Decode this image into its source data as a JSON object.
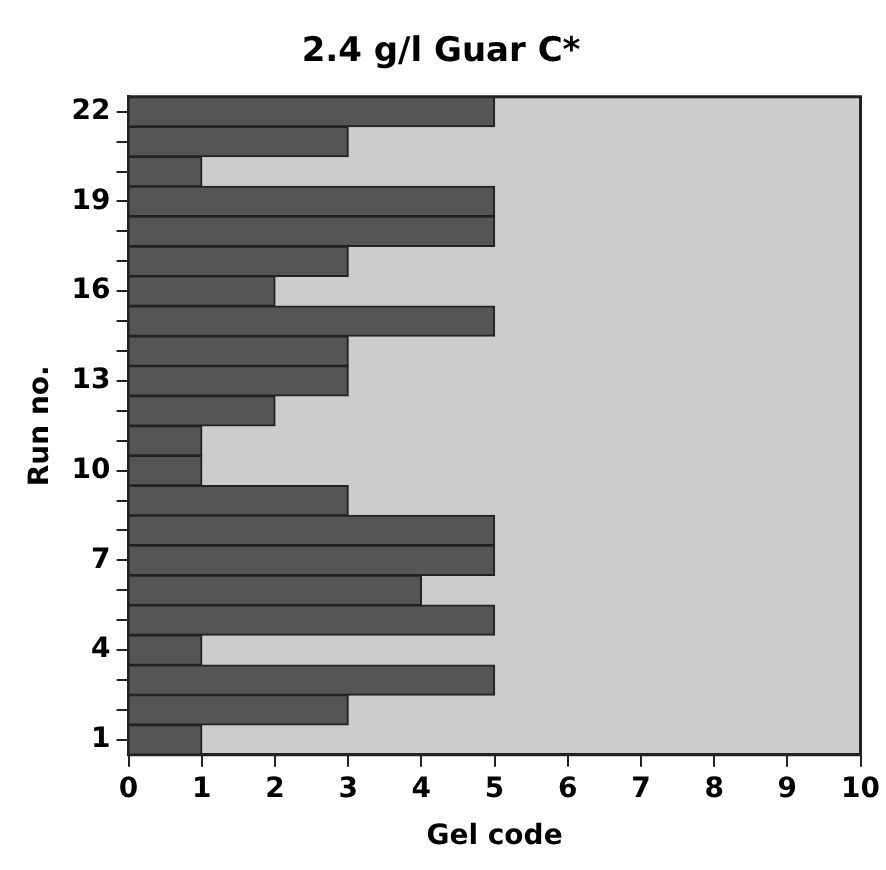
{
  "chart_data": {
    "type": "bar",
    "orientation": "horizontal",
    "title": "2.4 g/l Guar C*",
    "xlabel": "Gel code",
    "ylabel": "Run no.",
    "categories": [
      "22",
      null,
      null,
      "19",
      null,
      null,
      "16",
      null,
      null,
      "13",
      null,
      null,
      "10",
      null,
      null,
      "7",
      null,
      null,
      "4",
      null,
      null,
      "1"
    ],
    "values": [
      5,
      3,
      1,
      5,
      5,
      3,
      2,
      5,
      3,
      3,
      2,
      1,
      1,
      3,
      5,
      5,
      4,
      5,
      1,
      5,
      3,
      1
    ],
    "color": "#555555",
    "xlim": [
      0,
      10
    ],
    "xticks": [
      0,
      1,
      2,
      3,
      4,
      5,
      6,
      7,
      8,
      9,
      10
    ],
    "grid": false,
    "legend": false
  }
}
